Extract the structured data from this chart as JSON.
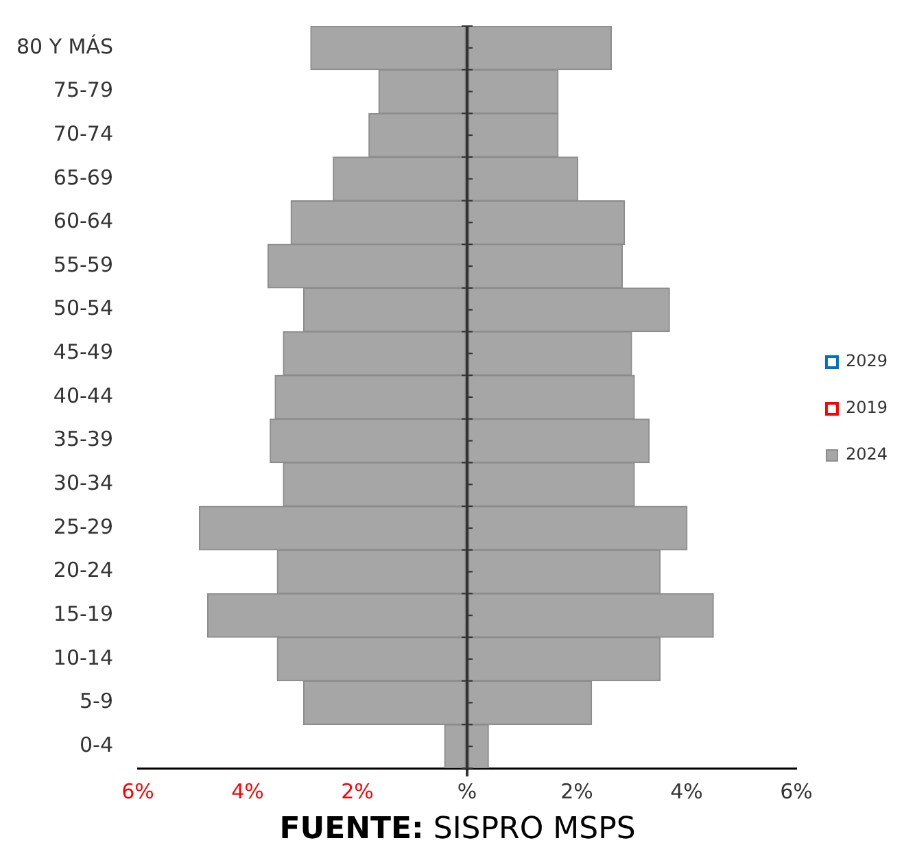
{
  "chart_data": {
    "type": "bar",
    "orientation": "horizontal",
    "stacked": true,
    "categories": [
      "80 Y MÁS",
      "75-79",
      "70-74",
      "65-69",
      "60-64",
      "55-59",
      "50-54",
      "45-49",
      "40-44",
      "35-39",
      "30-34",
      "25-29",
      "20-24",
      "15-19",
      "10-14",
      "5-9",
      "0-4"
    ],
    "series": [
      {
        "name": "2029",
        "color": "#0070c0",
        "values": [
          null,
          null,
          null,
          null,
          null,
          null,
          null,
          null,
          null,
          null,
          null,
          null,
          null,
          null,
          null,
          null,
          null
        ]
      },
      {
        "name": "2019",
        "color": "#ff0000",
        "values": [
          null,
          null,
          null,
          null,
          null,
          null,
          null,
          null,
          null,
          null,
          null,
          null,
          null,
          null,
          null,
          null,
          null
        ]
      },
      {
        "color": "#a6a6a6",
        "values": [
          -2.85,
          -1.61,
          -1.79,
          -2.44,
          -3.21,
          -3.63,
          -2.98,
          -3.35,
          -3.5,
          -3.59,
          -3.35,
          -4.88,
          -3.46,
          -4.73,
          -3.46,
          -2.98,
          -0.41
        ]
      },
      {
        "name": "2024",
        "color": "#a6a6a6",
        "values": [
          2.63,
          1.66,
          1.66,
          2.02,
          2.87,
          2.83,
          3.69,
          3,
          3.05,
          3.32,
          3.05,
          4.01,
          3.52,
          4.49,
          3.52,
          2.27,
          0.39
        ]
      }
    ],
    "xlim": [
      -6,
      6
    ],
    "xticks": [
      {
        "value": -6,
        "label": "6%"
      },
      {
        "value": -4,
        "label": "4%"
      },
      {
        "value": -2,
        "label": "2%"
      },
      {
        "value": 0,
        "label": "%"
      },
      {
        "value": 2,
        "label": "2%"
      },
      {
        "value": 4,
        "label": "4%"
      },
      {
        "value": 6,
        "label": "6%"
      }
    ],
    "legend": "right",
    "annotations": [
      "FUENTE: SISPRO MSPS"
    ]
  }
}
